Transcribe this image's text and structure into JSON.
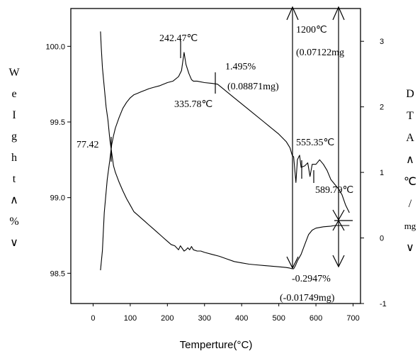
{
  "chart_data": {
    "type": "line",
    "xlabel": "Temperture(°C)",
    "ylabel_left": [
      "W",
      "e",
      "I",
      "g",
      "h",
      "t",
      "∧",
      "%",
      "∨"
    ],
    "ylabel_right": [
      "D",
      "T",
      "A",
      "∧",
      "℃",
      "/",
      "mg",
      "∨"
    ],
    "xlim": [
      -60,
      720
    ],
    "ylim_left": [
      98.3,
      100.25
    ],
    "ylim_right": [
      -1,
      3.5
    ],
    "x_ticks": [
      0,
      100,
      200,
      300,
      400,
      500,
      600,
      700
    ],
    "y_left_ticks": [
      "100.0",
      "99.5",
      "99.0",
      "98.5"
    ],
    "y_left_tick_values": [
      100.0,
      99.5,
      99.0,
      98.5
    ],
    "y_right_ticks": [
      "3",
      "2",
      "1",
      "0",
      "-1"
    ],
    "y_right_tick_values": [
      3,
      2,
      1,
      0,
      -1
    ],
    "series": [
      {
        "axis": "left",
        "x": [
          20,
          25,
          30,
          38,
          45,
          50,
          55,
          60,
          70,
          80,
          90,
          100,
          110,
          120,
          130,
          140,
          150,
          165,
          180,
          200,
          215,
          230,
          238,
          245,
          250,
          258,
          265,
          270,
          280,
          300,
          320,
          335,
          350,
          380,
          420,
          460,
          500,
          520,
          530,
          536,
          540,
          546,
          550,
          556,
          560,
          570,
          578,
          584,
          590,
          600,
          610,
          620,
          630,
          640,
          650,
          660,
          670,
          680,
          690
        ],
        "y": [
          98.52,
          98.65,
          98.9,
          99.12,
          99.25,
          99.35,
          99.41,
          99.46,
          99.53,
          99.59,
          99.63,
          99.66,
          99.68,
          99.69,
          99.7,
          99.71,
          99.72,
          99.73,
          99.74,
          99.76,
          99.77,
          99.8,
          99.84,
          99.96,
          99.88,
          99.82,
          99.78,
          99.77,
          99.77,
          99.76,
          99.755,
          99.75,
          99.72,
          99.66,
          99.58,
          99.5,
          99.42,
          99.37,
          99.33,
          99.28,
          99.27,
          99.1,
          99.25,
          99.28,
          99.2,
          99.21,
          99.23,
          99.14,
          99.22,
          99.22,
          99.25,
          99.22,
          99.18,
          99.12,
          99.09,
          99.06,
          99.02,
          98.95,
          98.9
        ]
      },
      {
        "axis": "right",
        "x": [
          20,
          22,
          25,
          30,
          35,
          40,
          45,
          50,
          55,
          60,
          70,
          80,
          90,
          100,
          110,
          120,
          130,
          140,
          150,
          160,
          170,
          180,
          190,
          200,
          210,
          220,
          225,
          230,
          235,
          240,
          245,
          250,
          255,
          260,
          265,
          270,
          280,
          290,
          300,
          320,
          340,
          360,
          380,
          400,
          420,
          440,
          460,
          480,
          500,
          520,
          530,
          536,
          540,
          545,
          550,
          555,
          560,
          570,
          580,
          590,
          600,
          620,
          640,
          650,
          660,
          670,
          680,
          690
        ],
        "y": [
          3.15,
          2.9,
          2.6,
          2.3,
          2.0,
          1.8,
          1.5,
          1.3,
          1.1,
          1.0,
          0.85,
          0.72,
          0.6,
          0.5,
          0.4,
          0.35,
          0.3,
          0.25,
          0.2,
          0.15,
          0.1,
          0.05,
          0.0,
          -0.05,
          -0.1,
          -0.12,
          -0.15,
          -0.18,
          -0.12,
          -0.16,
          -0.2,
          -0.18,
          -0.15,
          -0.18,
          -0.13,
          -0.18,
          -0.2,
          -0.2,
          -0.22,
          -0.25,
          -0.28,
          -0.32,
          -0.36,
          -0.38,
          -0.4,
          -0.41,
          -0.42,
          -0.43,
          -0.44,
          -0.45,
          -0.46,
          -0.47,
          -0.47,
          -0.42,
          -0.35,
          -0.3,
          -0.25,
          -0.1,
          0.05,
          0.12,
          0.15,
          0.17,
          0.18,
          0.19,
          0.19,
          0.19,
          0.19,
          0.19
        ]
      }
    ],
    "annotations": [
      "242.47℃",
      "335.78℃",
      "1.495%",
      "(0.08871mg)",
      "77.42",
      "1200℃",
      "(0.07122mg",
      "555.35℃",
      "589.79℃",
      "-0.2947%",
      "(-0.01749mg)"
    ]
  }
}
